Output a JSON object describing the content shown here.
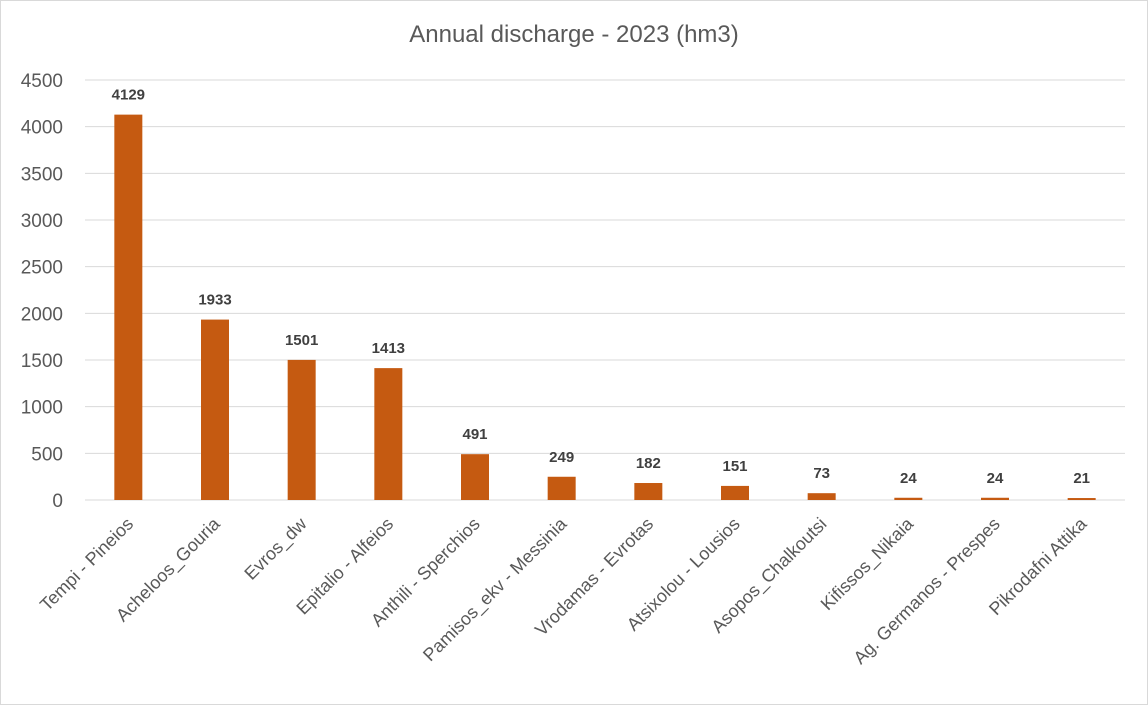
{
  "chart_data": {
    "type": "bar",
    "title": "Annual discharge - 2023 (hm3)",
    "xlabel": "",
    "ylabel": "",
    "categories": [
      "Tempi - Pineios",
      "Acheloos_Gouria",
      "Evros_dw",
      "Epitalio - Alfeios",
      "Anthili - Sperchios",
      "Pamisos_ekv - Messinia",
      "Vrodamas - Evrotas",
      "Atsixolou - Lousios",
      "Asopos_Chalkoutsi",
      "Kifissos_Nikaia",
      "Ag. Germanos - Prespes",
      "Pikrodafni Attika"
    ],
    "values": [
      4129,
      1933,
      1501,
      1413,
      491,
      249,
      182,
      151,
      73,
      24,
      24,
      21
    ],
    "data_labels": [
      "4129",
      "1933",
      "1501",
      "1413",
      "491",
      "249",
      "182",
      "151",
      "73",
      "24",
      "24",
      "21"
    ],
    "ylim": [
      0,
      4500
    ],
    "yticks": [
      0,
      500,
      1000,
      1500,
      2000,
      2500,
      3000,
      3500,
      4000,
      4500
    ],
    "ytick_labels": [
      "0",
      "500",
      "1000",
      "1500",
      "2000",
      "2500",
      "3000",
      "3500",
      "4000",
      "4500"
    ],
    "grid": true,
    "legend": "none",
    "colors": {
      "bar": "#c55a11",
      "grid": "#d9d9d9",
      "text": "#595959",
      "data_label": "#404040"
    }
  }
}
